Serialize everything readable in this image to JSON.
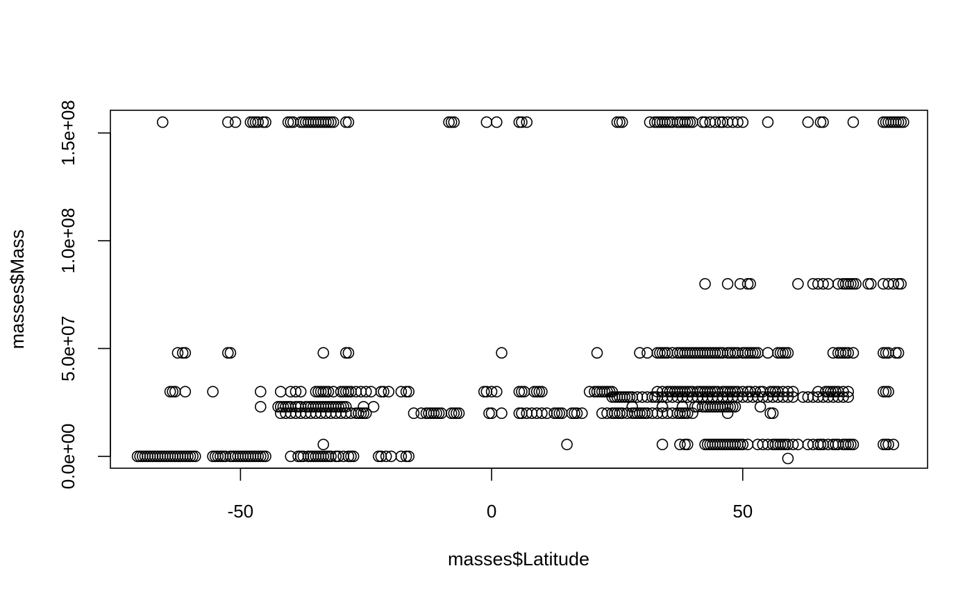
{
  "chart_data": {
    "type": "scatter",
    "title": "",
    "xlabel": "masses$Latitude",
    "ylabel": "masses$Mass",
    "xlim": [
      -75.9,
      86.8
    ],
    "ylim": [
      -5500000,
      160500000
    ],
    "xticks": [
      {
        "value": -50,
        "label": "-50"
      },
      {
        "value": 0,
        "label": "0"
      },
      {
        "value": 50,
        "label": "50"
      }
    ],
    "yticks": [
      {
        "value": 0,
        "label": "0.0e+00"
      },
      {
        "value": 50000000,
        "label": "5.0e+07"
      },
      {
        "value": 100000000,
        "label": "1.0e+08"
      },
      {
        "value": 150000000,
        "label": "1.5e+08"
      }
    ],
    "grid": false,
    "legend": "none",
    "series": [
      {
        "marker": "open-circle",
        "levels": [
          {
            "y": 155000000,
            "x": [
              -65.5,
              -52.5,
              -51,
              -48,
              -47.5,
              -47,
              -46.5,
              -45.5,
              -45,
              -40.5,
              -40,
              -39.5,
              -38,
              -37.5,
              -37,
              -36.5,
              -36,
              -35.5,
              -35,
              -34.5,
              -34,
              -33.5,
              -33,
              -32.5,
              -32,
              -31.5,
              -29,
              -28.5,
              -8.5,
              -8,
              -7.5,
              -1,
              1,
              5.5,
              6,
              7,
              25,
              25.5,
              26,
              31.5,
              32.5,
              33,
              33.5,
              34,
              34.5,
              35,
              35.5,
              36,
              37,
              37.5,
              38,
              38.5,
              39,
              39.5,
              40,
              42,
              42.5,
              43.5,
              44.5,
              45.5,
              46,
              47,
              48,
              49,
              50,
              55,
              63,
              65.5,
              66,
              72,
              78,
              78.5,
              79,
              79.5,
              80,
              80.5,
              81,
              81.5,
              82
            ]
          },
          {
            "y": 80000000,
            "x": [
              42.5,
              47,
              49.5,
              51,
              51.5,
              61,
              64,
              65,
              66,
              67,
              69,
              70,
              70.5,
              71,
              71.5,
              72,
              72.5,
              75,
              75.5,
              78,
              79,
              80,
              81,
              81.5
            ]
          },
          {
            "y": 48000000,
            "x": [
              -62.5,
              -61.5,
              -61,
              -52.5,
              -52,
              -33.5,
              -29,
              -28.5,
              2,
              21,
              29.5,
              31,
              33,
              33.5,
              34,
              34.5,
              35,
              36,
              37,
              37.5,
              38,
              38.5,
              39,
              39.5,
              40,
              40.5,
              41,
              41.5,
              42,
              42.5,
              43,
              43.5,
              44,
              44.5,
              45,
              45.5,
              46,
              47,
              47.5,
              48,
              48.5,
              49,
              50,
              50.5,
              51,
              51.5,
              52,
              52.5,
              53,
              55,
              57,
              57.5,
              58,
              58.5,
              59,
              68,
              69,
              69.5,
              70,
              70.5,
              71,
              72,
              78,
              78.5,
              79,
              80.5,
              81
            ]
          },
          {
            "y": 30000000,
            "x": [
              -64,
              -63.5,
              -63,
              -61,
              -55.5,
              -46,
              -42,
              -40,
              -39,
              -38,
              -35,
              -34.5,
              -34,
              -33.5,
              -33,
              -32.5,
              -31.5,
              -30,
              -29.5,
              -29,
              -28.5,
              -28,
              -27,
              -26,
              -25,
              -24,
              -22,
              -21.5,
              -20.5,
              -18,
              -17,
              -16.5,
              -1.5,
              -1,
              0,
              1,
              5.5,
              6,
              6.5,
              8.5,
              9,
              9.5,
              10,
              19.5,
              20.5,
              21,
              21.5,
              22,
              22.5,
              23,
              23.5,
              24,
              33,
              34,
              35,
              35.5,
              36,
              36.5,
              37,
              37.5,
              38,
              38.5,
              39,
              39.5,
              40,
              41,
              41.5,
              42,
              42.5,
              43,
              43.5,
              44,
              44.5,
              45,
              46,
              46.5,
              47,
              47.5,
              48,
              48.5,
              49,
              50,
              51,
              51.5,
              52.5,
              53.5,
              54,
              55.5,
              56,
              56.5,
              57,
              58,
              59,
              60,
              65,
              66.5,
              67,
              67.5,
              68,
              68.5,
              69,
              70,
              71,
              78,
              78.5,
              79
            ]
          },
          {
            "y": 27500000,
            "x": [
              24,
              24.5,
              25,
              25.5,
              26,
              26.5,
              27,
              27.5,
              28,
              29,
              30,
              31,
              32,
              32.5,
              33,
              34,
              35,
              36,
              37,
              38,
              39,
              40,
              41,
              42,
              43,
              44,
              45,
              46,
              47,
              48,
              49,
              50,
              51,
              52,
              53,
              54,
              55,
              56,
              57,
              58,
              59,
              60,
              62,
              63,
              64,
              65,
              66,
              67,
              68,
              69,
              70,
              71
            ]
          },
          {
            "y": 23000000,
            "x": [
              -46,
              -42.5,
              -42,
              -41.5,
              -41,
              -40.5,
              -40,
              -39,
              -38.5,
              -38,
              -37,
              -36.5,
              -36,
              -35.5,
              -35,
              -34.5,
              -34,
              -33.5,
              -33,
              -32.5,
              -32,
              -31.5,
              -31,
              -30.5,
              -30,
              -29.5,
              -29,
              -25.5,
              -23.5,
              28,
              34,
              38,
              40.5,
              41,
              42,
              42.5,
              43,
              43.5,
              44,
              44.5,
              45,
              45.5,
              46,
              46.5,
              47,
              47.5,
              48,
              48.5,
              53.5
            ]
          },
          {
            "y": 20000000,
            "x": [
              -42,
              -41,
              -40,
              -39,
              -38,
              -37,
              -36,
              -35,
              -34,
              -33,
              -32,
              -31,
              -30,
              -29,
              -28,
              -27,
              -26.5,
              -26,
              -25.5,
              -25,
              -15.5,
              -14,
              -13,
              -12.5,
              -12,
              -11.5,
              -11,
              -10.5,
              -10,
              -8,
              -7.5,
              -7,
              -6.5,
              -0.5,
              0,
              2,
              5.5,
              6,
              7,
              8,
              9,
              10,
              11,
              12.5,
              13,
              13.5,
              14,
              16,
              16.5,
              17,
              18,
              22,
              23,
              24,
              24.5,
              25,
              25.5,
              26,
              27,
              28,
              28.5,
              29,
              29.5,
              30,
              30.5,
              31,
              32,
              33,
              34,
              35,
              36,
              37,
              37.5,
              38,
              38.5,
              39,
              40,
              47,
              55.5,
              56
            ]
          },
          {
            "y": 5500000,
            "x": [
              -33.5,
              15,
              34,
              37.5,
              38.5,
              39,
              42.5,
              43,
              43.5,
              44,
              44.5,
              45,
              45.5,
              46,
              46.5,
              47,
              47.5,
              48,
              48.5,
              49,
              49.5,
              50,
              51,
              53,
              54,
              55,
              56,
              56.5,
              57,
              57.5,
              58,
              58.5,
              59,
              60,
              61,
              63,
              64,
              65,
              65.5,
              66,
              67,
              68,
              68.5,
              69,
              70,
              70.5,
              71,
              71.5,
              72,
              78,
              78.5,
              79,
              80
            ]
          },
          {
            "y": 0,
            "x": [
              -70.5,
              -70,
              -69.5,
              -69,
              -68.5,
              -68,
              -67.5,
              -67,
              -66.5,
              -66,
              -65.5,
              -65,
              -64.5,
              -64,
              -63.5,
              -63,
              -62.5,
              -62,
              -61.5,
              -61,
              -60.5,
              -60,
              -59.5,
              -59,
              -55.5,
              -55,
              -54.5,
              -54,
              -53.5,
              -53,
              -52,
              -51.5,
              -51,
              -50.5,
              -50,
              -49.5,
              -49,
              -48.5,
              -48,
              -47.5,
              -47,
              -46.5,
              -46,
              -45.5,
              -45,
              -40,
              -38.5,
              -38,
              -37.5,
              -36.5,
              -36,
              -35.5,
              -35,
              -34.5,
              -34,
              -33.5,
              -33,
              -32.5,
              -32,
              -31,
              -30.5,
              -29.5,
              -28.5,
              -28,
              -27.5,
              -22.5,
              -22,
              -21,
              -20,
              -18,
              -17,
              -16.5
            ]
          },
          {
            "y": -1000000,
            "x": [
              59
            ]
          }
        ]
      }
    ]
  }
}
